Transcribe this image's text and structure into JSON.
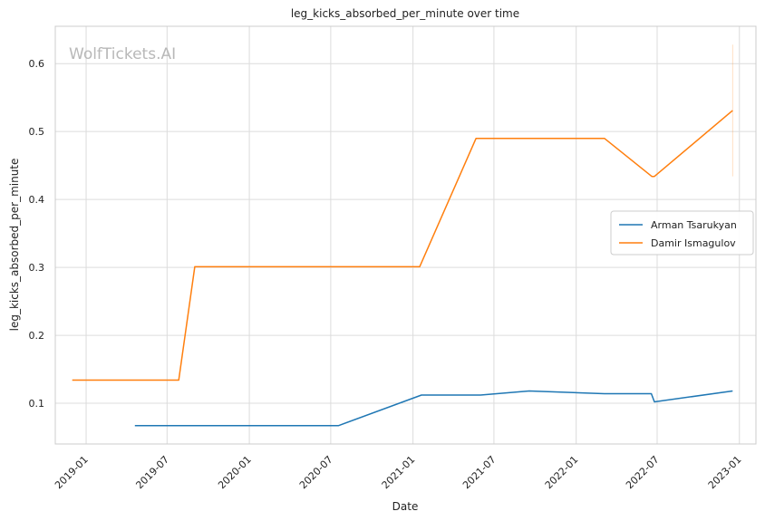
{
  "watermark": "WolfTickets.AI",
  "chart_data": {
    "type": "line",
    "title": "leg_kicks_absorbed_per_minute over time",
    "xlabel": "Date",
    "ylabel": "leg_kicks_absorbed_per_minute",
    "xlim": [
      "2018-10-24",
      "2023-02-07"
    ],
    "ylim": [
      0.04,
      0.655
    ],
    "x_ticks": [
      "2019-01-01",
      "2019-07-01",
      "2020-01-01",
      "2020-07-01",
      "2021-01-01",
      "2021-07-01",
      "2022-01-01",
      "2022-07-01",
      "2023-01-01"
    ],
    "x_tick_labels": [
      "2019-01",
      "2019-07",
      "2020-01",
      "2020-07",
      "2021-01",
      "2021-07",
      "2022-01",
      "2022-07",
      "2023-01"
    ],
    "y_ticks": [
      0.1,
      0.2,
      0.3,
      0.4,
      0.5,
      0.6
    ],
    "y_tick_labels": [
      "0.1",
      "0.2",
      "0.3",
      "0.4",
      "0.5",
      "0.6"
    ],
    "grid": true,
    "legend_position": "center-right",
    "series": [
      {
        "name": "Arman Tsarukyan",
        "color": "#1f77b4",
        "points": [
          {
            "x": "2019-04-20",
            "y": 0.067
          },
          {
            "x": "2020-07-18",
            "y": 0.067
          },
          {
            "x": "2021-01-20",
            "y": 0.112
          },
          {
            "x": "2021-06-01",
            "y": 0.112
          },
          {
            "x": "2021-09-18",
            "y": 0.118
          },
          {
            "x": "2022-03-05",
            "y": 0.114
          },
          {
            "x": "2022-06-18",
            "y": 0.114
          },
          {
            "x": "2022-06-25",
            "y": 0.102
          },
          {
            "x": "2022-12-17",
            "y": 0.118
          }
        ]
      },
      {
        "name": "Damir Ismagulov",
        "color": "#ff7f0e",
        "points": [
          {
            "x": "2018-12-01",
            "y": 0.134
          },
          {
            "x": "2019-07-27",
            "y": 0.134
          },
          {
            "x": "2019-09-01",
            "y": 0.301
          },
          {
            "x": "2021-01-16",
            "y": 0.301
          },
          {
            "x": "2021-05-22",
            "y": 0.49
          },
          {
            "x": "2022-03-05",
            "y": 0.49
          },
          {
            "x": "2022-06-19",
            "y": 0.434
          },
          {
            "x": "2022-06-25",
            "y": 0.434
          },
          {
            "x": "2022-12-17",
            "y": 0.531
          }
        ],
        "error_band": {
          "x": "2022-12-17",
          "low": 0.434,
          "high": 0.628
        }
      }
    ]
  }
}
